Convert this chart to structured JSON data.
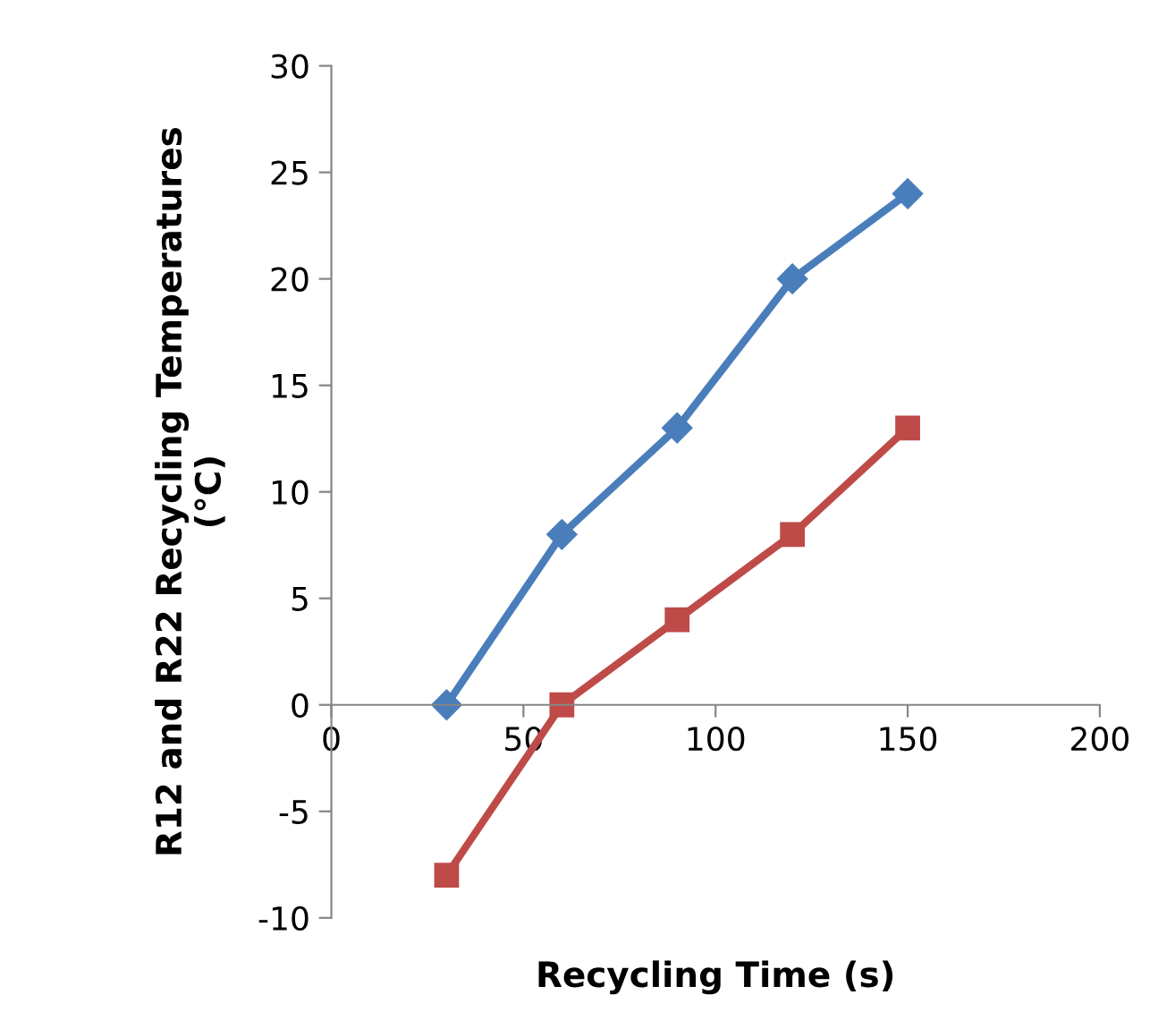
{
  "chart_data": {
    "type": "line",
    "xlabel": "Recycling Time (s)",
    "ylabel": "R12 and R22 Recycling Temperatures\n(°C)",
    "x": [
      30,
      60,
      90,
      120,
      150
    ],
    "series": [
      {
        "color": "#4a7ebb",
        "marker": "diamond",
        "values": [
          0,
          8,
          13,
          20,
          24
        ]
      },
      {
        "color": "#be4b48",
        "marker": "square",
        "values": [
          -8,
          0,
          4,
          8,
          13
        ]
      }
    ],
    "xlim": [
      0,
      200
    ],
    "xticks": [
      0,
      50,
      100,
      150,
      200
    ],
    "ylim": [
      -10,
      30
    ],
    "yticks": [
      -10,
      -5,
      0,
      5,
      10,
      15,
      20,
      25,
      30
    ],
    "grid": false,
    "line_style": "solid"
  }
}
